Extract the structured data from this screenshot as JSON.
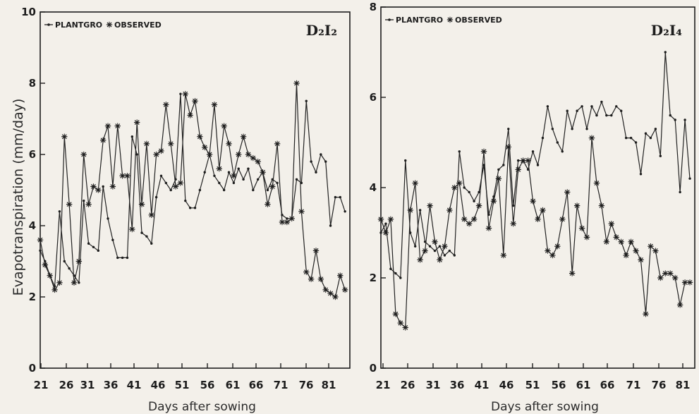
{
  "chart_data": [
    {
      "type": "line",
      "panel_label": "D₂I₂",
      "xlabel": "Days after sowing",
      "ylabel": "Evapotranspiration (mm/day)",
      "xlim": [
        21,
        85
      ],
      "ylim": [
        0,
        10
      ],
      "xticks": [
        "21",
        "26",
        "31",
        "36",
        "41",
        "46",
        "51",
        "56",
        "61",
        "66",
        "71",
        "76",
        "81"
      ],
      "yticks": [
        "0",
        "2",
        "4",
        "6",
        "8",
        "10"
      ],
      "legend": {
        "position": "top-left",
        "entries": [
          "PLANTGRO",
          "OBSERVED"
        ]
      },
      "series": [
        {
          "name": "PLANTGRO",
          "marker": "dot",
          "x": [
            21,
            22,
            23,
            24,
            25,
            26,
            27,
            28,
            29,
            30,
            31,
            32,
            33,
            34,
            35,
            36,
            37,
            38,
            39,
            40,
            41,
            42,
            43,
            44,
            45,
            46,
            47,
            48,
            49,
            50,
            51,
            52,
            53,
            54,
            55,
            56,
            57,
            58,
            59,
            60,
            61,
            62,
            63,
            64,
            65,
            66,
            67,
            68,
            69,
            70,
            71,
            72,
            73,
            74,
            75,
            76,
            77,
            78,
            79,
            80,
            81,
            82,
            83,
            84
          ],
          "y": [
            3.3,
            3.0,
            2.6,
            2.3,
            4.4,
            3.0,
            2.8,
            2.6,
            2.4,
            4.7,
            3.5,
            3.4,
            3.3,
            5.1,
            4.2,
            3.6,
            3.1,
            3.1,
            3.1,
            6.5,
            6.0,
            3.8,
            3.7,
            3.5,
            4.8,
            5.4,
            5.2,
            5.0,
            5.3,
            7.7,
            4.7,
            4.5,
            4.5,
            5.0,
            5.5,
            6.0,
            5.4,
            5.2,
            5.0,
            5.5,
            5.2,
            5.6,
            5.3,
            5.6,
            5.0,
            5.3,
            5.5,
            5.0,
            5.3,
            5.2,
            4.3,
            4.2,
            4.2,
            5.3,
            5.2,
            7.5,
            5.8,
            5.5,
            6.0,
            5.8,
            4.0,
            4.8,
            4.8,
            4.4
          ]
        },
        {
          "name": "OBSERVED",
          "marker": "asterisk",
          "x": [
            21,
            22,
            23,
            24,
            25,
            26,
            27,
            28,
            29,
            30,
            31,
            32,
            33,
            34,
            35,
            36,
            37,
            38,
            39,
            40,
            41,
            42,
            43,
            44,
            45,
            46,
            47,
            48,
            49,
            50,
            51,
            52,
            53,
            54,
            55,
            56,
            57,
            58,
            59,
            60,
            61,
            62,
            63,
            64,
            65,
            66,
            67,
            68,
            69,
            70,
            71,
            72,
            73,
            74,
            75,
            76,
            77,
            78,
            79,
            80,
            81,
            82,
            83,
            84
          ],
          "y": [
            3.6,
            2.9,
            2.6,
            2.2,
            2.4,
            6.5,
            4.6,
            2.4,
            3.0,
            6.0,
            4.6,
            5.1,
            5.0,
            6.4,
            6.8,
            5.1,
            6.8,
            5.4,
            5.4,
            3.9,
            6.9,
            4.6,
            6.3,
            4.3,
            6.0,
            6.1,
            7.4,
            6.3,
            5.1,
            5.2,
            7.7,
            7.1,
            7.5,
            6.5,
            6.2,
            6.0,
            7.4,
            5.6,
            6.8,
            6.3,
            5.4,
            6.0,
            6.5,
            6.0,
            5.9,
            5.8,
            5.5,
            4.6,
            5.1,
            6.3,
            4.1,
            4.1,
            4.2,
            8.0,
            4.4,
            2.7,
            2.5,
            3.3,
            2.5,
            2.2,
            2.1,
            2.0,
            2.6,
            2.2
          ]
        }
      ]
    },
    {
      "type": "line",
      "panel_label": "D₂I₄",
      "xlabel": "Days after sowing",
      "ylabel": "",
      "xlim": [
        21,
        85
      ],
      "ylim": [
        0,
        8
      ],
      "xticks": [
        "21",
        "26",
        "31",
        "36",
        "41",
        "46",
        "51",
        "56",
        "61",
        "66",
        "71",
        "76",
        "81"
      ],
      "yticks": [
        "0",
        "2",
        "4",
        "6",
        "8"
      ],
      "legend": {
        "position": "top-left",
        "entries": [
          "PLANTGRO",
          "OBSERVED"
        ]
      },
      "series": [
        {
          "name": "PLANTGRO",
          "marker": "dot",
          "x": [
            21,
            22,
            23,
            24,
            25,
            26,
            27,
            28,
            29,
            30,
            31,
            32,
            33,
            34,
            35,
            36,
            37,
            38,
            39,
            40,
            41,
            42,
            43,
            44,
            45,
            46,
            47,
            48,
            49,
            50,
            51,
            52,
            53,
            54,
            55,
            56,
            57,
            58,
            59,
            60,
            61,
            62,
            63,
            64,
            65,
            66,
            67,
            68,
            69,
            70,
            71,
            72,
            73,
            74,
            75,
            76,
            77,
            78,
            79,
            80,
            81,
            82,
            83,
            84
          ],
          "y": [
            3.0,
            3.2,
            2.2,
            2.1,
            2.0,
            4.6,
            3.0,
            2.7,
            3.5,
            2.8,
            2.7,
            2.6,
            2.7,
            2.5,
            2.6,
            2.5,
            4.8,
            4.0,
            3.9,
            3.7,
            3.9,
            4.5,
            3.4,
            3.8,
            4.4,
            4.5,
            5.3,
            3.6,
            4.6,
            4.6,
            4.4,
            4.8,
            4.5,
            5.1,
            5.8,
            5.3,
            5.0,
            4.8,
            5.7,
            5.3,
            5.7,
            5.8,
            5.3,
            5.8,
            5.6,
            5.9,
            5.6,
            5.6,
            5.8,
            5.7,
            5.1,
            5.1,
            5.0,
            4.3,
            5.2,
            5.1,
            5.3,
            4.7,
            7.0,
            5.6,
            5.5,
            3.9,
            5.5,
            4.2
          ]
        },
        {
          "name": "OBSERVED",
          "marker": "asterisk",
          "x": [
            21,
            22,
            23,
            24,
            25,
            26,
            27,
            28,
            29,
            30,
            31,
            32,
            33,
            34,
            35,
            36,
            37,
            38,
            39,
            40,
            41,
            42,
            43,
            44,
            45,
            46,
            47,
            48,
            49,
            50,
            51,
            52,
            53,
            54,
            55,
            56,
            57,
            58,
            59,
            60,
            61,
            62,
            63,
            64,
            65,
            66,
            67,
            68,
            69,
            70,
            71,
            72,
            73,
            74,
            75,
            76,
            77,
            78,
            79,
            80,
            81,
            82,
            83,
            84
          ],
          "y": [
            3.3,
            3.0,
            3.3,
            1.2,
            1.0,
            0.9,
            3.5,
            4.1,
            2.4,
            2.6,
            3.6,
            2.8,
            2.4,
            2.7,
            3.5,
            4.0,
            4.1,
            3.3,
            3.2,
            3.3,
            3.6,
            4.8,
            3.1,
            3.7,
            4.2,
            2.5,
            4.9,
            3.2,
            4.4,
            4.6,
            4.6,
            3.7,
            3.3,
            3.5,
            2.6,
            2.5,
            2.7,
            3.3,
            3.9,
            2.1,
            3.6,
            3.1,
            2.9,
            5.1,
            4.1,
            3.6,
            2.8,
            3.2,
            2.9,
            2.8,
            2.5,
            2.8,
            2.6,
            2.4,
            1.2,
            2.7,
            2.6,
            2.0,
            2.1,
            2.1,
            2.0,
            1.4,
            1.9,
            1.9
          ]
        }
      ]
    }
  ]
}
